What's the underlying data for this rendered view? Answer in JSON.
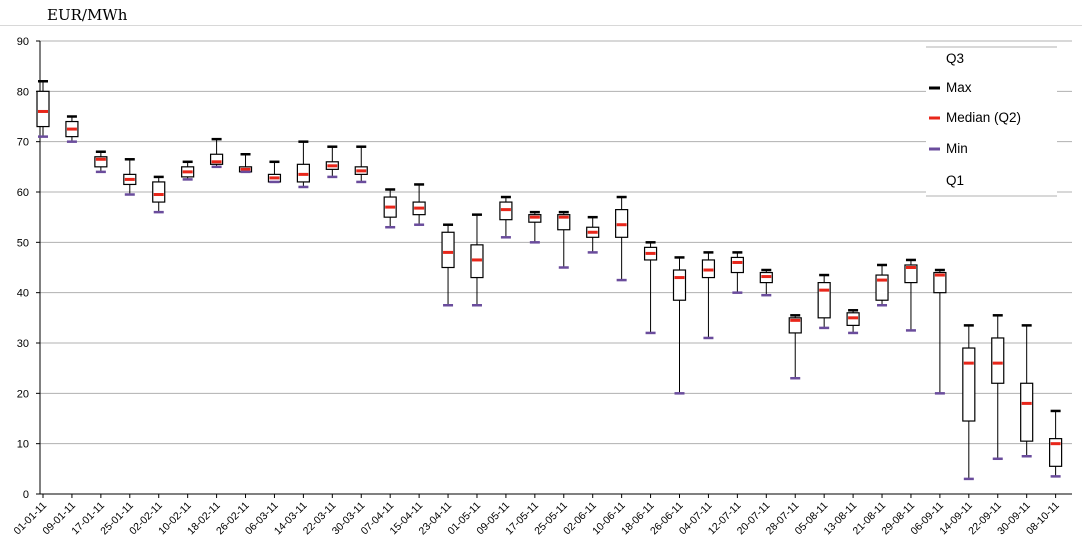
{
  "header": {
    "unit_label": "EUR/MWh"
  },
  "chart_data": {
    "type": "boxplot",
    "title": "",
    "xlabel": "",
    "ylabel": "",
    "ylim": [
      0,
      90
    ],
    "yticks": [
      0,
      10,
      20,
      30,
      40,
      50,
      60,
      70,
      80,
      90
    ],
    "grid": true,
    "legend_position": "top-right",
    "legend": [
      {
        "label": "Q3",
        "marker": "none",
        "color": ""
      },
      {
        "label": "Max",
        "marker": "dash",
        "color": "#000000"
      },
      {
        "label": "Median (Q2)",
        "marker": "dash",
        "color": "#e8261a"
      },
      {
        "label": "Min",
        "marker": "dash",
        "color": "#6a4c9c"
      },
      {
        "label": "Q1",
        "marker": "none",
        "color": ""
      }
    ],
    "colors": {
      "box": "#000000",
      "max": "#000000",
      "median": "#e8261a",
      "min": "#6a4c9c",
      "grid": "#b0b0b0"
    },
    "categories": [
      "01-01-11",
      "09-01-11",
      "17-01-11",
      "25-01-11",
      "02-02-11",
      "10-02-11",
      "18-02-11",
      "26-02-11",
      "06-03-11",
      "14-03-11",
      "22-03-11",
      "30-03-11",
      "07-04-11",
      "15-04-11",
      "23-04-11",
      "01-05-11",
      "09-05-11",
      "17-05-11",
      "25-05-11",
      "02-06-11",
      "10-06-11",
      "18-06-11",
      "26-06-11",
      "04-07-11",
      "12-07-11",
      "20-07-11",
      "28-07-11",
      "05-08-11",
      "13-08-11",
      "21-08-11",
      "29-08-11",
      "06-09-11",
      "14-09-11",
      "22-09-11",
      "30-09-11",
      "08-10-11"
    ],
    "series": [
      {
        "date": "01-01-11",
        "min": 71,
        "q1": 73,
        "median": 76,
        "q3": 80,
        "max": 82
      },
      {
        "date": "09-01-11",
        "min": 70,
        "q1": 71,
        "median": 72.5,
        "q3": 74,
        "max": 75
      },
      {
        "date": "17-01-11",
        "min": 64,
        "q1": 65,
        "median": 66.5,
        "q3": 67,
        "max": 68
      },
      {
        "date": "25-01-11",
        "min": 59.5,
        "q1": 61.5,
        "median": 62.5,
        "q3": 63.5,
        "max": 66.5
      },
      {
        "date": "02-02-11",
        "min": 56,
        "q1": 58,
        "median": 59.5,
        "q3": 62,
        "max": 63
      },
      {
        "date": "10-02-11",
        "min": 62.5,
        "q1": 63,
        "median": 64,
        "q3": 65,
        "max": 66
      },
      {
        "date": "18-02-11",
        "min": 65,
        "q1": 65.5,
        "median": 66,
        "q3": 67.5,
        "max": 70.5
      },
      {
        "date": "26-02-11",
        "min": 64,
        "q1": 64,
        "median": 64.5,
        "q3": 65,
        "max": 67.5
      },
      {
        "date": "06-03-11",
        "min": 62,
        "q1": 62,
        "median": 62.8,
        "q3": 63.5,
        "max": 66
      },
      {
        "date": "14-03-11",
        "min": 61,
        "q1": 62,
        "median": 63.5,
        "q3": 65.5,
        "max": 70
      },
      {
        "date": "22-03-11",
        "min": 63,
        "q1": 64.5,
        "median": 65.2,
        "q3": 66,
        "max": 69
      },
      {
        "date": "30-03-11",
        "min": 62,
        "q1": 63.5,
        "median": 64.2,
        "q3": 65,
        "max": 69
      },
      {
        "date": "07-04-11",
        "min": 53,
        "q1": 55,
        "median": 57,
        "q3": 59,
        "max": 60.5
      },
      {
        "date": "15-04-11",
        "min": 53.5,
        "q1": 55.5,
        "median": 56.8,
        "q3": 58,
        "max": 61.5
      },
      {
        "date": "23-04-11",
        "min": 37.5,
        "q1": 45,
        "median": 48,
        "q3": 52,
        "max": 53.5
      },
      {
        "date": "01-05-11",
        "min": 37.5,
        "q1": 43,
        "median": 46.5,
        "q3": 49.5,
        "max": 55.5
      },
      {
        "date": "09-05-11",
        "min": 51,
        "q1": 54.5,
        "median": 56.5,
        "q3": 58,
        "max": 59
      },
      {
        "date": "17-05-11",
        "min": 50,
        "q1": 54,
        "median": 55,
        "q3": 55.5,
        "max": 56
      },
      {
        "date": "25-05-11",
        "min": 45,
        "q1": 52.5,
        "median": 55,
        "q3": 55.5,
        "max": 56
      },
      {
        "date": "02-06-11",
        "min": 48,
        "q1": 51,
        "median": 52,
        "q3": 53,
        "max": 55
      },
      {
        "date": "10-06-11",
        "min": 42.5,
        "q1": 51,
        "median": 53.5,
        "q3": 56.5,
        "max": 59
      },
      {
        "date": "18-06-11",
        "min": 32,
        "q1": 46.5,
        "median": 47.8,
        "q3": 49,
        "max": 50
      },
      {
        "date": "26-06-11",
        "min": 20,
        "q1": 38.5,
        "median": 43,
        "q3": 44.5,
        "max": 47
      },
      {
        "date": "04-07-11",
        "min": 31,
        "q1": 43,
        "median": 44.5,
        "q3": 46.5,
        "max": 48
      },
      {
        "date": "12-07-11",
        "min": 40,
        "q1": 44,
        "median": 46,
        "q3": 47,
        "max": 48
      },
      {
        "date": "20-07-11",
        "min": 39.5,
        "q1": 42,
        "median": 43.2,
        "q3": 44,
        "max": 44.5
      },
      {
        "date": "28-07-11",
        "min": 23,
        "q1": 32,
        "median": 34.5,
        "q3": 35,
        "max": 35.5
      },
      {
        "date": "05-08-11",
        "min": 33,
        "q1": 35,
        "median": 40.5,
        "q3": 42,
        "max": 43.5
      },
      {
        "date": "13-08-11",
        "min": 32,
        "q1": 33.5,
        "median": 35,
        "q3": 36,
        "max": 36.5
      },
      {
        "date": "21-08-11",
        "min": 37.5,
        "q1": 38.5,
        "median": 42.5,
        "q3": 43.5,
        "max": 45.5
      },
      {
        "date": "29-08-11",
        "min": 32.5,
        "q1": 42,
        "median": 45,
        "q3": 45.5,
        "max": 46.5
      },
      {
        "date": "06-09-11",
        "min": 20,
        "q1": 40,
        "median": 43.5,
        "q3": 44,
        "max": 44.5
      },
      {
        "date": "14-09-11",
        "min": 3,
        "q1": 14.5,
        "median": 26,
        "q3": 29,
        "max": 33.5
      },
      {
        "date": "22-09-11",
        "min": 7,
        "q1": 22,
        "median": 26,
        "q3": 31,
        "max": 35.5
      },
      {
        "date": "30-09-11",
        "min": 7.5,
        "q1": 10.5,
        "median": 18,
        "q3": 22,
        "max": 33.5
      },
      {
        "date": "08-10-11",
        "min": 3.5,
        "q1": 5.5,
        "median": 10,
        "q3": 11,
        "max": 16.5
      }
    ]
  }
}
